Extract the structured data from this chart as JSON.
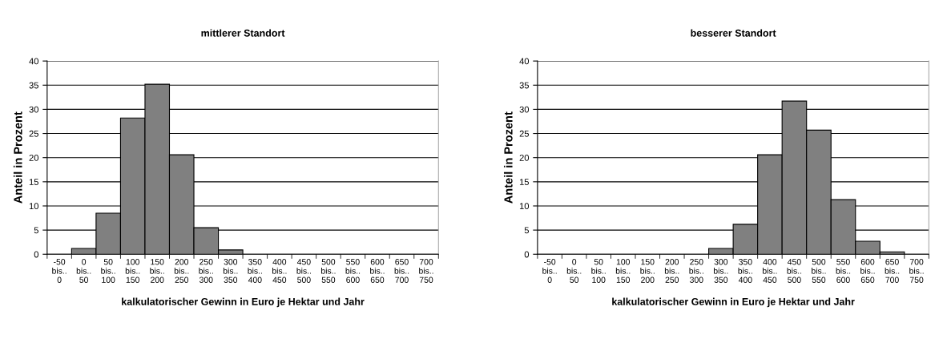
{
  "chart_data": [
    {
      "type": "bar",
      "title": "mittlerer Standort",
      "xlabel": "kalkulatorischer Gewinn in Euro je Hektar und Jahr",
      "ylabel": "Anteil in Prozent",
      "categories": [
        "-50\nbis..\n0",
        "0\nbis..\n50",
        "50\nbis..\n100",
        "100\nbis..\n150",
        "150\nbis..\n200",
        "200\nbis..\n250",
        "250\nbis..\n300",
        "300\nbis..\n350",
        "350\nbis..\n400",
        "400\nbis..\n450",
        "450\nbis..\n500",
        "500\nbis..\n550",
        "550\nbis..\n600",
        "600\nbis..\n650",
        "650\nbis..\n700",
        "700\nbis..\n750"
      ],
      "values": [
        null,
        1.2,
        8.5,
        28.2,
        35.2,
        20.6,
        5.5,
        0.9,
        null,
        null,
        null,
        null,
        null,
        null,
        null,
        null
      ],
      "color": "#808080",
      "ylim": [
        0,
        40
      ],
      "yticks": [
        0,
        5,
        10,
        15,
        20,
        25,
        30,
        35,
        40
      ],
      "grid": "y"
    },
    {
      "type": "bar",
      "title": "besserer Standort",
      "xlabel": "kalkulatorischer Gewinn in Euro je Hektar und Jahr",
      "ylabel": "Anteil in Prozent",
      "categories": [
        "-50\nbis..\n0",
        "0\nbis..\n50",
        "50\nbis..\n100",
        "100\nbis..\n150",
        "150\nbis..\n200",
        "200\nbis..\n250",
        "250\nbis..\n300",
        "300\nbis..\n350",
        "350\nbis..\n400",
        "400\nbis..\n450",
        "450\nbis..\n500",
        "500\nbis..\n550",
        "550\nbis..\n600",
        "600\nbis..\n650",
        "650\nbis..\n700",
        "700\nbis..\n750"
      ],
      "values": [
        null,
        null,
        null,
        null,
        null,
        null,
        null,
        1.2,
        6.2,
        20.6,
        31.7,
        25.7,
        11.3,
        2.7,
        0.5,
        null
      ],
      "color": "#808080",
      "ylim": [
        0,
        40
      ],
      "yticks": [
        0,
        5,
        10,
        15,
        20,
        25,
        30,
        35,
        40
      ],
      "grid": "y"
    }
  ]
}
